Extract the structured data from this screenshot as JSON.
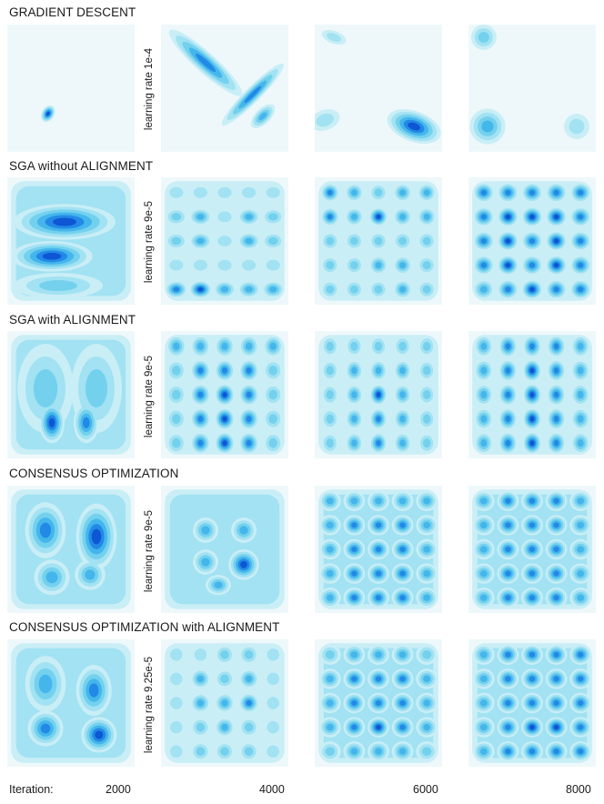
{
  "rows": [
    {
      "title": "GRADIENT DESCENT",
      "learning_rate": "learning rate 1e-4"
    },
    {
      "title": "SGA without ALIGNMENT",
      "learning_rate": "learning rate 9e-5"
    },
    {
      "title": "SGA with ALIGNMENT",
      "learning_rate": "learning rate 9e-5"
    },
    {
      "title": "CONSENSUS OPTIMIZATION",
      "learning_rate": "learning rate 9e-5"
    },
    {
      "title": "CONSENSUS OPTIMIZATION with ALIGNMENT",
      "learning_rate": "learning rate 9.25e-5"
    }
  ],
  "footer": {
    "iteration_label": "Iteration:",
    "iterations": [
      "2000",
      "4000",
      "6000",
      "8000"
    ]
  },
  "colors": {
    "level_0": "#eef8fb",
    "level_1": "#c9eef6",
    "level_2": "#a2e2f2",
    "level_3": "#74d1ee",
    "level_4": "#44b6ec",
    "level_5": "#2389e6",
    "level_6": "#0d56d4",
    "level_7": "#0a2fa8"
  }
}
